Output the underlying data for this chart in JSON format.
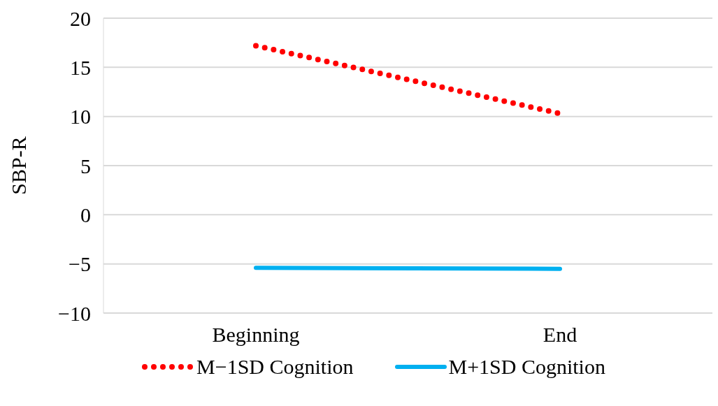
{
  "chart_data": {
    "type": "line",
    "ylabel": "SBP-R",
    "categories": [
      "Beginning",
      "End"
    ],
    "series": [
      {
        "name": "M−1SD Cognition",
        "color": "#ff0000",
        "values": [
          17.2,
          10.3
        ],
        "line_style": "dotted"
      },
      {
        "name": "M+1SD Cognition",
        "color": "#00b0f0",
        "values": [
          -5.4,
          -5.5
        ],
        "line_style": "solid"
      }
    ],
    "ylim": [
      -10,
      20
    ],
    "yticks": [
      {
        "value": -10,
        "label": "−10"
      },
      {
        "value": -5,
        "label": "−5"
      },
      0,
      5,
      10,
      15,
      20
    ],
    "grid": "y",
    "legend": "bottom",
    "marker": "none"
  }
}
